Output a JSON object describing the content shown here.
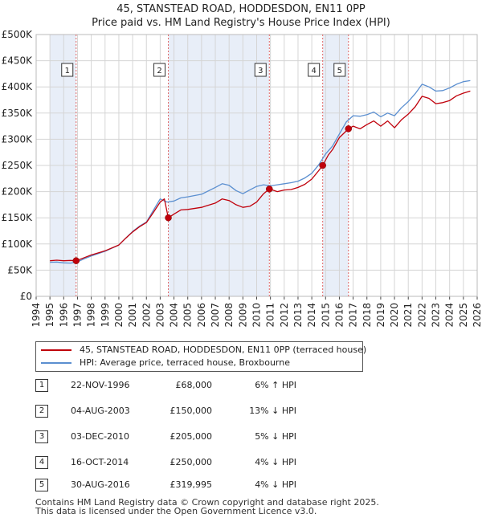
{
  "title": {
    "line1": "45, STANSTEAD ROAD, HODDESDON, EN11 0PP",
    "line2": "Price paid vs. HM Land Registry's House Price Index (HPI)"
  },
  "colors": {
    "property": "#c0000b",
    "hpi": "#5b8fd0",
    "shade": "#e8eef8",
    "grid": "#d5d5d5",
    "marker_line": "#e06666"
  },
  "chart_data": {
    "type": "line",
    "title": "Price paid vs. HM Land Registry's House Price Index (HPI)",
    "xlabel": "",
    "ylabel": "",
    "xlim": [
      1994,
      2026
    ],
    "ylim": [
      0,
      500000
    ],
    "x_ticks": [
      "1994",
      "1995",
      "1996",
      "1997",
      "1998",
      "1999",
      "2000",
      "2001",
      "2002",
      "2003",
      "2004",
      "2005",
      "2006",
      "2007",
      "2008",
      "2009",
      "2010",
      "2011",
      "2012",
      "2013",
      "2014",
      "2015",
      "2016",
      "2017",
      "2018",
      "2019",
      "2020",
      "2021",
      "2022",
      "2023",
      "2024",
      "2025",
      "2026"
    ],
    "y_ticks": [
      {
        "value": 0,
        "label": "£0"
      },
      {
        "value": 50000,
        "label": "£50K"
      },
      {
        "value": 100000,
        "label": "£100K"
      },
      {
        "value": 150000,
        "label": "£150K"
      },
      {
        "value": 200000,
        "label": "£200K"
      },
      {
        "value": 250000,
        "label": "£250K"
      },
      {
        "value": 300000,
        "label": "£300K"
      },
      {
        "value": 350000,
        "label": "£350K"
      },
      {
        "value": 400000,
        "label": "£400K"
      },
      {
        "value": 450000,
        "label": "£450K"
      },
      {
        "value": 500000,
        "label": "£500K"
      }
    ],
    "data_range": [
      1995,
      2025.5
    ],
    "shaded_periods": [
      [
        1995,
        1996.9
      ],
      [
        2003.6,
        2010.9
      ],
      [
        2014.8,
        2016.66
      ]
    ],
    "series": [
      {
        "name": "45, STANSTEAD ROAD, HODDESDON, EN11 0PP (terraced house)",
        "color": "#c0000b",
        "x": [
          1995,
          1995.5,
          1996,
          1996.5,
          1996.9,
          1997.5,
          1998,
          1999,
          2000,
          2000.5,
          2001,
          2001.5,
          2002,
          2002.5,
          2003,
          2003.3,
          2003.59,
          2004,
          2004.5,
          2005,
          2006,
          2007,
          2007.5,
          2008,
          2008.5,
          2009,
          2009.5,
          2010,
          2010.5,
          2010.92,
          2011.5,
          2012,
          2012.5,
          2013,
          2013.5,
          2014,
          2014.5,
          2014.79,
          2015.2,
          2015.5,
          2016,
          2016.66,
          2017,
          2017.5,
          2018,
          2018.5,
          2019,
          2019.5,
          2020,
          2020.5,
          2021,
          2021.5,
          2022,
          2022.5,
          2023,
          2023.5,
          2024,
          2024.5,
          2025,
          2025.5
        ],
        "values": [
          68000,
          69000,
          68000,
          68500,
          68000,
          74000,
          79000,
          87000,
          98000,
          111000,
          123000,
          133000,
          141000,
          160000,
          180000,
          186000,
          150000,
          157000,
          165000,
          166000,
          170000,
          178000,
          186000,
          183000,
          175000,
          170000,
          172000,
          180000,
          196000,
          205000,
          200000,
          203000,
          204000,
          208000,
          214000,
          224000,
          240000,
          250000,
          270000,
          280000,
          303000,
          319995,
          325000,
          320000,
          328000,
          335000,
          325000,
          335000,
          322000,
          337000,
          348000,
          362000,
          382000,
          378000,
          368000,
          370000,
          374000,
          383000,
          388000,
          392000
        ]
      },
      {
        "name": "HPI: Average price, terraced house, Broxbourne",
        "color": "#5b8fd0",
        "x": [
          1995,
          1995.5,
          1996,
          1996.5,
          1997,
          1997.5,
          1998,
          1999,
          2000,
          2000.5,
          2001,
          2001.5,
          2002,
          2002.5,
          2003,
          2003.5,
          2004,
          2004.5,
          2005,
          2006,
          2007,
          2007.5,
          2008,
          2008.5,
          2009,
          2009.5,
          2010,
          2010.5,
          2011,
          2011.5,
          2012,
          2012.5,
          2013,
          2013.5,
          2014,
          2014.5,
          2015,
          2015.5,
          2016,
          2016.5,
          2017,
          2017.5,
          2018,
          2018.5,
          2019,
          2019.5,
          2020,
          2020.5,
          2021,
          2021.5,
          2022,
          2022.5,
          2023,
          2023.5,
          2024,
          2024.5,
          2025,
          2025.5
        ],
        "values": [
          65000,
          65500,
          64000,
          63500,
          66000,
          72000,
          77000,
          86000,
          98000,
          111000,
          124000,
          134000,
          142000,
          164000,
          186000,
          180000,
          182000,
          188000,
          190000,
          195000,
          208000,
          215000,
          212000,
          202000,
          196000,
          203000,
          210000,
          213000,
          211000,
          213000,
          215000,
          217000,
          220000,
          226000,
          235000,
          251000,
          272000,
          287000,
          310000,
          333000,
          345000,
          344000,
          347000,
          352000,
          343000,
          350000,
          345000,
          360000,
          372000,
          387000,
          405000,
          400000,
          392000,
          393000,
          398000,
          405000,
          410000,
          412000
        ]
      }
    ],
    "sales": [
      {
        "id": "1",
        "x": 1996.9,
        "price": 68000
      },
      {
        "id": "2",
        "x": 2003.59,
        "price": 150000
      },
      {
        "id": "3",
        "x": 2010.92,
        "price": 205000
      },
      {
        "id": "4",
        "x": 2014.79,
        "price": 250000
      },
      {
        "id": "5",
        "x": 2016.66,
        "price": 319995
      }
    ]
  },
  "legend": {
    "property_label": "45, STANSTEAD ROAD, HODDESDON, EN11 0PP (terraced house)",
    "hpi_label": "HPI: Average price, terraced house, Broxbourne"
  },
  "sales_table": [
    {
      "num": "1",
      "date": "22-NOV-1996",
      "price": "£68,000",
      "hpi": "6% ↑ HPI"
    },
    {
      "num": "2",
      "date": "04-AUG-2003",
      "price": "£150,000",
      "hpi": "13% ↓ HPI"
    },
    {
      "num": "3",
      "date": "03-DEC-2010",
      "price": "£205,000",
      "hpi": "5% ↓ HPI"
    },
    {
      "num": "4",
      "date": "16-OCT-2014",
      "price": "£250,000",
      "hpi": "4% ↓ HPI"
    },
    {
      "num": "5",
      "date": "30-AUG-2016",
      "price": "£319,995",
      "hpi": "4% ↓ HPI"
    }
  ],
  "footer": {
    "line1": "Contains HM Land Registry data © Crown copyright and database right 2025.",
    "line2": "This data is licensed under the Open Government Licence v3.0."
  }
}
